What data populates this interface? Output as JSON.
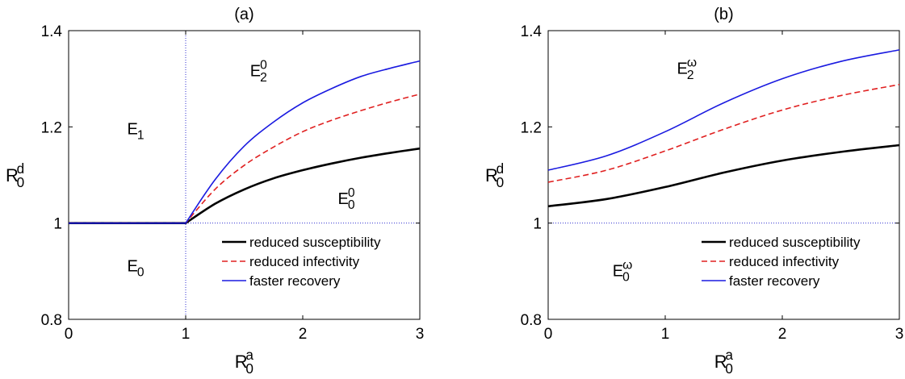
{
  "chart_data": [
    {
      "type": "line",
      "title": "(a)",
      "xlabel": {
        "main": "R",
        "sub": "0",
        "sup": "a"
      },
      "ylabel": {
        "main": "R",
        "sub": "0",
        "sup": "d"
      },
      "xlim": [
        0,
        3
      ],
      "ylim": [
        0.8,
        1.4
      ],
      "xticks": [
        0,
        1,
        2,
        3
      ],
      "yticks": [
        0.8,
        1,
        1.2,
        1.4
      ],
      "xtick_labels": [
        "0",
        "1",
        "2",
        "3"
      ],
      "ytick_labels": [
        "0.8",
        "1",
        "1.2",
        "1.4"
      ],
      "grid": false,
      "legend_position": "bottom-right",
      "reference_lines": [
        {
          "orientation": "vertical",
          "value": 1,
          "style": "dotted",
          "color": "#3030d0"
        },
        {
          "orientation": "horizontal",
          "value": 1,
          "from": 1,
          "to": 3,
          "style": "dotted",
          "color": "#3030d0"
        }
      ],
      "region_labels": [
        {
          "main": "E",
          "sub": "1",
          "sup": "",
          "x": 0.5,
          "y": 1.185
        },
        {
          "main": "E",
          "sub": "2",
          "sup": "0",
          "x": 1.55,
          "y": 1.305
        },
        {
          "main": "E",
          "sub": "0",
          "sup": "0",
          "x": 2.3,
          "y": 1.04
        },
        {
          "main": "E",
          "sub": "0",
          "sup": "",
          "x": 0.5,
          "y": 0.9
        }
      ],
      "series": [
        {
          "name": "reduced susceptibility",
          "color": "#000000",
          "style": "solid",
          "x": [
            0,
            1,
            1.25,
            1.5,
            1.75,
            2,
            2.25,
            2.5,
            2.75,
            3
          ],
          "y": [
            1,
            1,
            1.04,
            1.07,
            1.093,
            1.11,
            1.124,
            1.136,
            1.146,
            1.155
          ]
        },
        {
          "name": "reduced infectivity",
          "color": "#e02020",
          "style": "dashed",
          "x": [
            0,
            1,
            1.25,
            1.5,
            1.75,
            2,
            2.25,
            2.5,
            2.75,
            3
          ],
          "y": [
            1,
            1,
            1.07,
            1.12,
            1.158,
            1.19,
            1.214,
            1.234,
            1.252,
            1.268
          ]
        },
        {
          "name": "faster recovery",
          "color": "#1a1ae0",
          "style": "solid",
          "x": [
            0,
            1,
            1.25,
            1.5,
            1.75,
            2,
            2.25,
            2.5,
            2.75,
            3
          ],
          "y": [
            1,
            1,
            1.09,
            1.16,
            1.21,
            1.25,
            1.28,
            1.305,
            1.322,
            1.337
          ]
        }
      ]
    },
    {
      "type": "line",
      "title": "(b)",
      "xlabel": {
        "main": "R",
        "sub": "0",
        "sup": "a"
      },
      "ylabel": {
        "main": "R",
        "sub": "0",
        "sup": "d"
      },
      "xlim": [
        0,
        3
      ],
      "ylim": [
        0.8,
        1.4
      ],
      "xticks": [
        0,
        1,
        2,
        3
      ],
      "yticks": [
        0.8,
        1,
        1.2,
        1.4
      ],
      "xtick_labels": [
        "0",
        "1",
        "2",
        "3"
      ],
      "ytick_labels": [
        "0.8",
        "1",
        "1.2",
        "1.4"
      ],
      "grid": false,
      "legend_position": "bottom-right",
      "reference_lines": [
        {
          "orientation": "horizontal",
          "value": 1,
          "from": 0,
          "to": 3,
          "style": "dotted",
          "color": "#3030d0"
        }
      ],
      "region_labels": [
        {
          "main": "E",
          "sub": "2",
          "sup": "ω",
          "x": 1.1,
          "y": 1.31
        },
        {
          "main": "E",
          "sub": "0",
          "sup": "ω",
          "x": 0.55,
          "y": 0.89
        }
      ],
      "series": [
        {
          "name": "reduced susceptibility",
          "color": "#000000",
          "style": "solid",
          "x": [
            0,
            0.5,
            1,
            1.5,
            2,
            2.5,
            3
          ],
          "y": [
            1.035,
            1.05,
            1.075,
            1.105,
            1.13,
            1.148,
            1.162
          ]
        },
        {
          "name": "reduced infectivity",
          "color": "#e02020",
          "style": "dashed",
          "x": [
            0,
            0.5,
            1,
            1.5,
            2,
            2.5,
            3
          ],
          "y": [
            1.085,
            1.11,
            1.15,
            1.195,
            1.235,
            1.265,
            1.288
          ]
        },
        {
          "name": "faster recovery",
          "color": "#1a1ae0",
          "style": "solid",
          "x": [
            0,
            0.5,
            1,
            1.5,
            2,
            2.5,
            3
          ],
          "y": [
            1.11,
            1.14,
            1.19,
            1.25,
            1.3,
            1.336,
            1.36
          ]
        }
      ]
    }
  ]
}
